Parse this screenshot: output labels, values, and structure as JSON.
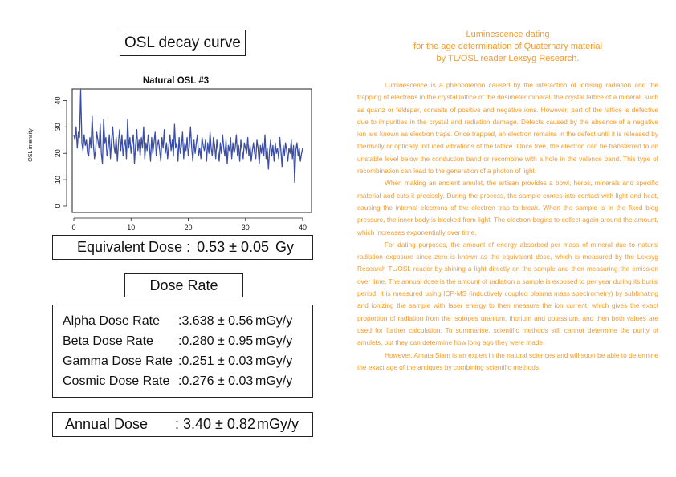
{
  "left": {
    "osl_title": "OSL decay curve",
    "equivalent_dose": {
      "label": "Equivalent Dose :",
      "value": "0.53 ± 0.05",
      "unit": "Gy"
    },
    "dose_rate_title": "Dose Rate",
    "dose_rates": [
      {
        "name": "Alpha Dose Rate",
        "value": ":3.638 ± 0.56",
        "unit": "mGy/y"
      },
      {
        "name": "Beta Dose Rate",
        "value": ":0.280 ± 0.95",
        "unit": "mGy/y"
      },
      {
        "name": "Gamma Dose Rate",
        "value": ":0.251 ± 0.03",
        "unit": "mGy/y"
      },
      {
        "name": "Cosmic Dose Rate",
        "value": ":0.276 ± 0.03",
        "unit": "mGy/y"
      }
    ],
    "annual_dose": {
      "label": "Annual Dose",
      "value": ": 3.40 ± 0.82",
      "unit": "mGy/y"
    }
  },
  "right": {
    "title_lines": [
      "Luminescence dating",
      "for the age determination of Quaternary material",
      "by TL/OSL reader Lexsyg Research."
    ],
    "paragraphs": [
      "Luminescence is a phenomenon caused by the interaction of ionising radiation and the trapping of electrons in the crystal lattice of the dosimeter mineral. the crystal lattice of a mineral, such as quartz or feldspar, consists of positive and negative ions. However, part of the lattice is defective due to impurities in the crystal and radiation damage. Defects caused by the absence of a negative ion are known as electron traps. Once trapped, an electron remains in the defect until it is released by thermally or optically induced vibrations of the lattice. Once free, the electron can be transferred to an unstable level below the conduction band or recombine with a hole in the valence band. This type of recombination can lead to the generation of a photon of light.",
      "When making an ancient amulet, the artisan provides a bowl, herbs, minerals and specific material and cuts it precisely. During the process, the sample comes into contact with light and heat, causing the internal electrons of the electron trap to break. When the sample is in the fixed blog pressure, the inner body is blocked from light. The electron begins to collect again around the amount, which increases exponentially over time.",
      "For dating purposes, the amount of energy absorbed per mass of mineral due to natural radiation exposure since zero is known as the equivalent dose, which is measured by the Lexsyg Research TL/OSL reader by shining a light directly on the sample and then measuring the emission over time. The annual dose is the amount of radiation a sample is exposed to per year during its burial period. It is measured using ICP-MS (inductively coupled plasma mass spectrometry) by sublimating and ionizing the sample with laser energy to then measure the ion current, which gives the exact proportion of radiation from the isotopes uranium, thorium and potassium, and then both values are used for further calculation. To summarise, scientific methods still cannot determine the purity of amulets, but they can determine how long ago they were made.",
      "However, Amata Siam is an expert in the natural sciences and will soon be able to determine the exact age of the antiques by combining scientific methods."
    ]
  },
  "chart_data": {
    "type": "line",
    "title": "Natural OSL #3",
    "xlabel": "",
    "ylabel": "OSL intensity",
    "xlim": [
      0,
      40
    ],
    "ylim": [
      0,
      45
    ],
    "xticks": [
      0,
      10,
      20,
      30,
      40
    ],
    "yticks": [
      0,
      10,
      20,
      30,
      40
    ],
    "grid": false,
    "color": "#3a4ea6",
    "series": [
      {
        "x": [
          0,
          0.2,
          0.4,
          0.6,
          0.8,
          1,
          1.2,
          1.4,
          1.6,
          1.8,
          2,
          2.2,
          2.4,
          2.6,
          2.8,
          3,
          3.2,
          3.4,
          3.6,
          3.8,
          4,
          4.2,
          4.4,
          4.6,
          4.8,
          5,
          5.2,
          5.4,
          5.6,
          5.8,
          6,
          6.2,
          6.4,
          6.6,
          6.8,
          7,
          7.2,
          7.4,
          7.6,
          7.8,
          8,
          8.2,
          8.4,
          8.6,
          8.8,
          9,
          9.2,
          9.4,
          9.6,
          9.8,
          10,
          10.2,
          10.4,
          10.6,
          10.8,
          11,
          11.2,
          11.4,
          11.6,
          11.8,
          12,
          12.2,
          12.4,
          12.6,
          12.8,
          13,
          13.2,
          13.4,
          13.6,
          13.8,
          14,
          14.2,
          14.4,
          14.6,
          14.8,
          15,
          15.2,
          15.4,
          15.6,
          15.8,
          16,
          16.2,
          16.4,
          16.6,
          16.8,
          17,
          17.2,
          17.4,
          17.6,
          17.8,
          18,
          18.2,
          18.4,
          18.6,
          18.8,
          19,
          19.2,
          19.4,
          19.6,
          19.8,
          20,
          20.2,
          20.4,
          20.6,
          20.8,
          21,
          21.2,
          21.4,
          21.6,
          21.8,
          22,
          22.2,
          22.4,
          22.6,
          22.8,
          23,
          23.2,
          23.4,
          23.6,
          23.8,
          24,
          24.2,
          24.4,
          24.6,
          24.8,
          25,
          25.2,
          25.4,
          25.6,
          25.8,
          26,
          26.2,
          26.4,
          26.6,
          26.8,
          27,
          27.2,
          27.4,
          27.6,
          27.8,
          28,
          28.2,
          28.4,
          28.6,
          28.8,
          29,
          29.2,
          29.4,
          29.6,
          29.8,
          30,
          30.2,
          30.4,
          30.6,
          30.8,
          31,
          31.2,
          31.4,
          31.6,
          31.8,
          32,
          32.2,
          32.4,
          32.6,
          32.8,
          33,
          33.2,
          33.4,
          33.6,
          33.8,
          34,
          34.2,
          34.4,
          34.6,
          34.8,
          35,
          35.2,
          35.4,
          35.6,
          35.8,
          36,
          36.2,
          36.4,
          36.6,
          36.8,
          37,
          37.2,
          37.4,
          37.6,
          37.8,
          38,
          38.2,
          38.4,
          38.6,
          38.8,
          39,
          39.2,
          39.4,
          39.6,
          39.8,
          40
        ],
        "y": [
          27,
          25,
          30,
          22,
          28,
          26,
          44,
          24,
          21,
          27,
          23,
          25,
          20,
          19,
          26,
          22,
          34,
          24,
          18,
          21,
          28,
          25,
          22,
          31,
          20,
          16,
          33,
          24,
          26,
          19,
          22,
          27,
          18,
          25,
          30,
          23,
          20,
          26,
          17,
          24,
          29,
          21,
          27,
          19,
          23,
          25,
          18,
          33,
          22,
          26,
          20,
          24,
          27,
          16,
          23,
          29,
          21,
          25,
          19,
          26,
          22,
          30,
          18,
          24,
          21,
          27,
          23,
          17,
          26,
          20,
          24,
          28,
          19,
          23,
          25,
          21,
          17,
          26,
          22,
          29,
          20,
          24,
          18,
          23,
          27,
          21,
          25,
          19,
          31,
          22,
          24,
          17,
          26,
          20,
          23,
          28,
          18,
          24,
          21,
          26,
          19,
          23,
          30,
          22,
          17,
          25,
          20,
          24,
          27,
          19,
          22,
          18,
          26,
          23,
          21,
          25,
          17,
          24,
          20,
          28,
          22,
          19,
          26,
          23,
          18,
          25,
          21,
          17,
          24,
          20,
          27,
          22,
          19,
          25,
          16,
          23,
          21,
          26,
          18,
          24,
          20,
          22,
          27,
          19,
          23,
          17,
          25,
          21,
          18,
          24,
          22,
          20,
          26,
          19,
          23,
          17,
          21,
          24,
          20,
          18,
          25,
          22,
          16,
          23,
          20,
          24,
          19,
          27,
          18,
          22,
          14,
          21,
          25,
          19,
          23,
          17,
          24,
          20,
          22,
          18,
          26,
          21,
          15,
          23,
          19,
          24,
          21,
          17,
          22,
          20,
          25,
          18,
          23,
          9,
          21,
          24,
          19,
          22,
          17,
          20,
          22
        ]
      }
    ]
  }
}
